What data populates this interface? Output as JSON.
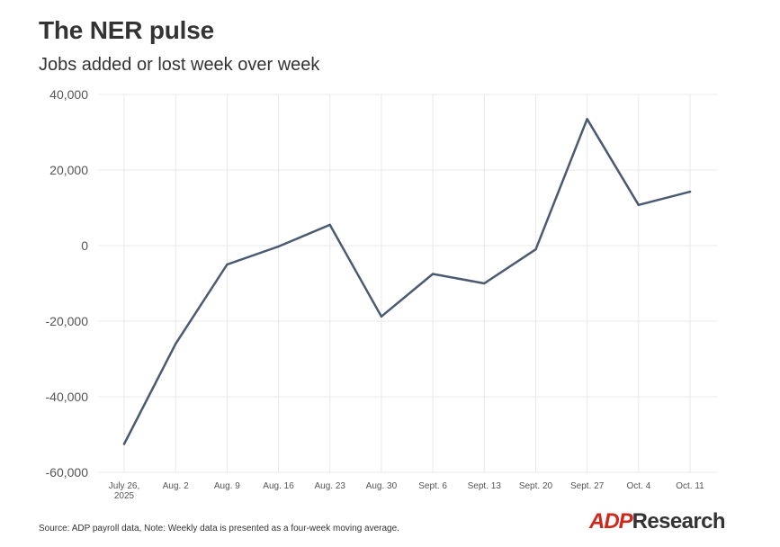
{
  "header": {
    "title": "The NER pulse",
    "subtitle": "Jobs added or lost week over week"
  },
  "footer": {
    "source_note": "Source: ADP payroll data, Note: Weekly data is presented as a four-week moving average.",
    "logo_brand": "ADP",
    "logo_word": "Research"
  },
  "colors": {
    "line": "#4a5a70",
    "logo_red": "#d0271d"
  },
  "chart_data": {
    "type": "line",
    "title": "The NER pulse",
    "subtitle": "Jobs added or lost week over week",
    "xlabel": "",
    "ylabel": "",
    "categories": [
      "July 26,\n2025",
      "Aug. 2",
      "Aug. 9",
      "Aug. 16",
      "Aug. 23",
      "Aug. 30",
      "Sept. 6",
      "Sept. 13",
      "Sept. 20",
      "Sept. 27",
      "Oct. 4",
      "Oct. 11"
    ],
    "series": [
      {
        "values": [
          -52500,
          -26000,
          -5000,
          -250,
          5500,
          -18750,
          -7500,
          -10000,
          -1000,
          33500,
          10750,
          14250
        ]
      }
    ],
    "ylim": [
      -60000,
      40000
    ],
    "yticks": [
      40000,
      20000,
      0,
      -20000,
      -40000,
      -60000
    ],
    "ytick_labels": [
      "40,000",
      "20,000",
      "0",
      "-20,000",
      "-40,000",
      "-60,000"
    ],
    "grid": true,
    "legend": "none"
  }
}
